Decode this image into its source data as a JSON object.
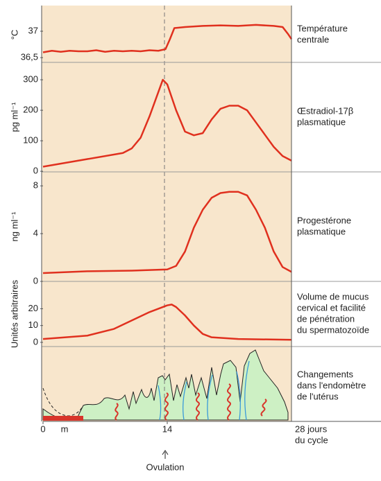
{
  "chart_data": [
    {
      "type": "line",
      "y_label": "°C",
      "label_lines": [
        "Température",
        "centrale"
      ],
      "color": "#e0301e",
      "x": [
        0,
        1,
        2,
        3,
        4,
        5,
        6,
        7,
        8,
        9,
        10,
        11,
        12,
        13,
        13.8,
        14.3,
        14.8,
        16,
        18,
        20,
        22,
        24,
        26,
        27,
        27.6,
        28
      ],
      "values": [
        36.6,
        36.63,
        36.61,
        36.63,
        36.62,
        36.62,
        36.64,
        36.61,
        36.63,
        36.62,
        36.63,
        36.62,
        36.64,
        36.63,
        36.66,
        36.85,
        37.06,
        37.08,
        37.1,
        37.11,
        37.1,
        37.12,
        37.1,
        37.08,
        36.95,
        36.85
      ],
      "ylim": [
        36.41,
        37.46
      ],
      "yticks": [
        {
          "value": 36.5,
          "label": "36,5"
        },
        37
      ]
    },
    {
      "type": "line",
      "y_label": "pg ml⁻¹",
      "label_lines": [
        "Œstradiol-17β",
        "plasmatique"
      ],
      "color": "#e0301e",
      "x": [
        0,
        5,
        9,
        10,
        11,
        12,
        13,
        13.5,
        14,
        15,
        16,
        17,
        18,
        19,
        20,
        21,
        22,
        23,
        24,
        25,
        26,
        27,
        28
      ],
      "values": [
        15,
        40,
        60,
        75,
        110,
        180,
        260,
        300,
        285,
        200,
        130,
        118,
        125,
        170,
        205,
        215,
        215,
        200,
        160,
        120,
        80,
        50,
        35
      ],
      "ylim": [
        -2,
        357
      ],
      "yticks": [
        0,
        100,
        200,
        300
      ]
    },
    {
      "type": "line",
      "y_label": "ng ml⁻¹",
      "label_lines": [
        "Progestérone",
        "plasmatique"
      ],
      "color": "#e0301e",
      "x": [
        0,
        5,
        10,
        14,
        15,
        16,
        17,
        18,
        19,
        20,
        21,
        22,
        23,
        24,
        25,
        26,
        27,
        28
      ],
      "values": [
        0.7,
        0.85,
        0.9,
        1,
        1.3,
        2.5,
        4.5,
        6,
        7,
        7.4,
        7.5,
        7.5,
        7.2,
        6,
        4.5,
        2.5,
        1.2,
        0.8
      ],
      "ylim": [
        0,
        9.17
      ],
      "yticks": [
        0,
        4,
        8
      ]
    },
    {
      "type": "line",
      "y_label": "Unités arbitraires",
      "label_lines": [
        "Volume de mucus",
        "cervical et facilité",
        "de pénétration",
        "du spermatozoïde"
      ],
      "color": "#e0301e",
      "x": [
        0,
        5,
        8,
        10,
        12,
        13,
        14,
        14.5,
        15,
        16,
        17,
        18,
        19,
        22,
        28
      ],
      "values": [
        2,
        4,
        8,
        13,
        18,
        20,
        22,
        22.5,
        21,
        16,
        10,
        5,
        3,
        2,
        1.5
      ],
      "ylim": [
        -2.5,
        36.25
      ],
      "yticks": [
        0,
        10,
        20
      ]
    }
  ],
  "endometrium": {
    "label_lines": [
      "Changements",
      "dans l'endomètre",
      "de l'utérus"
    ]
  },
  "cycle_axis": {
    "ticks": [
      {
        "value": 0,
        "label": "0"
      },
      {
        "value": 14,
        "label": "14"
      }
    ],
    "end_lines": [
      "28 jours",
      "du cycle"
    ],
    "menses_label": "m",
    "ovulation": "Ovulation"
  }
}
